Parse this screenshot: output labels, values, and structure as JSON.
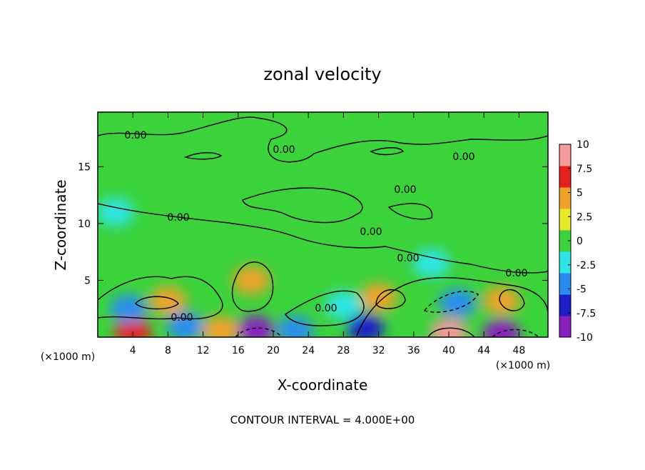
{
  "chart_data": {
    "type": "contour",
    "title": "zonal velocity",
    "xlabel": "X-coordinate",
    "ylabel": "Z-coordinate",
    "x_unit_left": "(×1000 m)",
    "x_unit_right": "(×1000 m)",
    "footnote": "CONTOUR INTERVAL = 4.000E+00",
    "xlim": [
      0,
      51.3
    ],
    "xticks": [
      4,
      8,
      12,
      16,
      20,
      24,
      28,
      32,
      36,
      40,
      44,
      48
    ],
    "ylim": [
      0,
      19.8
    ],
    "yticks": [
      5,
      10,
      15
    ],
    "background_value": 0,
    "field": [
      {
        "x": 32,
        "z": 3.5,
        "value": 5.5
      },
      {
        "x": 40,
        "z": 0.4,
        "value": 8
      },
      {
        "x": 46,
        "z": 0.3,
        "value": -9
      },
      {
        "x": 18,
        "z": 0.6,
        "value": -8
      },
      {
        "x": 30.5,
        "z": 0.8,
        "value": -6
      },
      {
        "x": 8,
        "z": 3.2,
        "value": 4
      },
      {
        "x": 4,
        "z": 0.4,
        "value": 6
      },
      {
        "x": 10,
        "z": 1,
        "value": -5
      },
      {
        "x": 17.5,
        "z": 5,
        "value": 4
      },
      {
        "x": 46,
        "z": 3.2,
        "value": 5
      },
      {
        "x": 41,
        "z": 3,
        "value": -5
      },
      {
        "x": 3.5,
        "z": 2.5,
        "value": -4
      },
      {
        "x": 22.5,
        "z": 0.6,
        "value": -4
      },
      {
        "x": 38,
        "z": 6.5,
        "value": -2.5
      },
      {
        "x": 28,
        "z": 2.8,
        "value": -3
      },
      {
        "x": 14,
        "z": 0.6,
        "value": 4
      },
      {
        "x": 2,
        "z": 11,
        "value": -1.5
      },
      {
        "x": 26,
        "z": 17,
        "value": 0.5
      }
    ],
    "contour_labels": [
      "0.00",
      "0.00",
      "0.00",
      "0.00",
      "0.00",
      "0.00",
      "0.00",
      "0.00",
      "0.00",
      "0.00"
    ],
    "colorbar": {
      "lim": [
        -10,
        10
      ],
      "ticks": [
        10,
        7.5,
        5,
        2.5,
        0,
        -2.5,
        -5,
        -7.5,
        -10
      ],
      "colors": [
        "#8a1fc0",
        "#1e1ec8",
        "#2a8cf0",
        "#2ee6e6",
        "#3cd23c",
        "#e6ea2a",
        "#f0a22a",
        "#e6201e",
        "#f49a9a"
      ]
    }
  }
}
